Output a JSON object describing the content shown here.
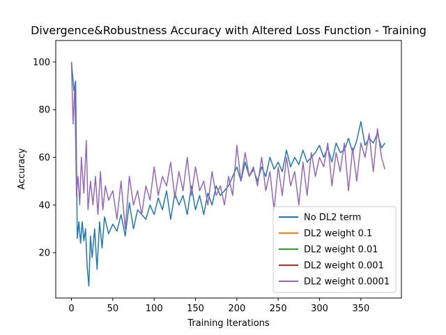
{
  "chart_data": {
    "type": "line",
    "title": "Divergence&Robustness Accuracy with Altered Loss Function - Training",
    "xlabel": "Training Iterations",
    "ylabel": "Accuracy",
    "xlim": [
      -19,
      399
    ],
    "ylim": [
      1,
      109
    ],
    "xticks": [
      0,
      50,
      100,
      150,
      200,
      250,
      300,
      350
    ],
    "yticks": [
      20,
      40,
      60,
      80,
      100
    ],
    "grid": false,
    "legend": "bottom-right",
    "series": [
      {
        "name": "No DL2 term",
        "color": "#1f77b4",
        "x": [
          0,
          3,
          5,
          7,
          9,
          11,
          13,
          15,
          17,
          19,
          21,
          23,
          25,
          28,
          31,
          34,
          37,
          40,
          45,
          50,
          55,
          60,
          65,
          70,
          75,
          80,
          85,
          90,
          95,
          100,
          105,
          110,
          115,
          120,
          125,
          130,
          135,
          140,
          145,
          150,
          155,
          160,
          165,
          170,
          175,
          180,
          185,
          190,
          195,
          200,
          205,
          210,
          215,
          220,
          225,
          230,
          235,
          240,
          245,
          250,
          255,
          260,
          265,
          270,
          275,
          280,
          285,
          290,
          295,
          300,
          305,
          310,
          315,
          320,
          325,
          330,
          335,
          340,
          345,
          350,
          355,
          360,
          365,
          370,
          375,
          379
        ],
        "y": [
          100,
          88,
          92,
          26,
          33,
          24,
          33,
          25,
          30,
          14,
          6,
          27,
          18,
          30,
          13,
          33,
          22,
          35,
          28,
          32,
          29,
          36,
          27,
          41,
          30,
          38,
          36,
          34,
          40,
          36,
          43,
          38,
          46,
          34,
          45,
          40,
          44,
          36,
          48,
          38,
          44,
          36,
          45,
          40,
          48,
          44,
          46,
          48,
          52,
          56,
          50,
          58,
          52,
          55,
          50,
          56,
          52,
          60,
          55,
          58,
          54,
          63,
          56,
          60,
          57,
          63,
          58,
          60,
          62,
          65,
          60,
          64,
          58,
          66,
          62,
          63,
          68,
          62,
          67,
          75,
          65,
          68,
          66,
          70,
          64,
          66
        ]
      },
      {
        "name": "DL2 weight 0.1",
        "color": "#ff7f0e",
        "x": [],
        "y": []
      },
      {
        "name": "DL2 weight 0.01",
        "color": "#2ca02c",
        "x": [],
        "y": []
      },
      {
        "name": "DL2 weight 0.001",
        "color": "#d62728",
        "x": [],
        "y": []
      },
      {
        "name": "DL2 weight 0.0001",
        "color": "#9467bd",
        "x": [
          0,
          2,
          4,
          6,
          8,
          10,
          12,
          15,
          18,
          20,
          23,
          26,
          29,
          32,
          35,
          38,
          41,
          45,
          50,
          55,
          60,
          65,
          70,
          75,
          80,
          85,
          90,
          95,
          100,
          105,
          110,
          115,
          120,
          125,
          130,
          135,
          140,
          145,
          150,
          155,
          160,
          165,
          170,
          175,
          180,
          185,
          190,
          195,
          200,
          205,
          210,
          215,
          220,
          225,
          230,
          235,
          240,
          245,
          250,
          255,
          260,
          265,
          270,
          275,
          280,
          285,
          290,
          295,
          300,
          305,
          310,
          315,
          320,
          325,
          330,
          335,
          340,
          345,
          350,
          355,
          360,
          365,
          370,
          375,
          379
        ],
        "y": [
          100,
          74,
          90,
          44,
          52,
          40,
          60,
          45,
          67,
          38,
          50,
          40,
          52,
          36,
          54,
          38,
          48,
          42,
          46,
          34,
          50,
          30,
          52,
          40,
          46,
          36,
          48,
          42,
          56,
          44,
          52,
          48,
          58,
          43,
          54,
          46,
          60,
          44,
          56,
          46,
          50,
          40,
          54,
          44,
          48,
          40,
          52,
          44,
          65,
          50,
          62,
          52,
          56,
          48,
          60,
          46,
          54,
          38,
          56,
          44,
          60,
          48,
          54,
          40,
          58,
          44,
          62,
          52,
          60,
          56,
          66,
          48,
          62,
          54,
          66,
          46,
          64,
          50,
          66,
          60,
          70,
          54,
          72,
          60,
          55
        ]
      }
    ]
  }
}
